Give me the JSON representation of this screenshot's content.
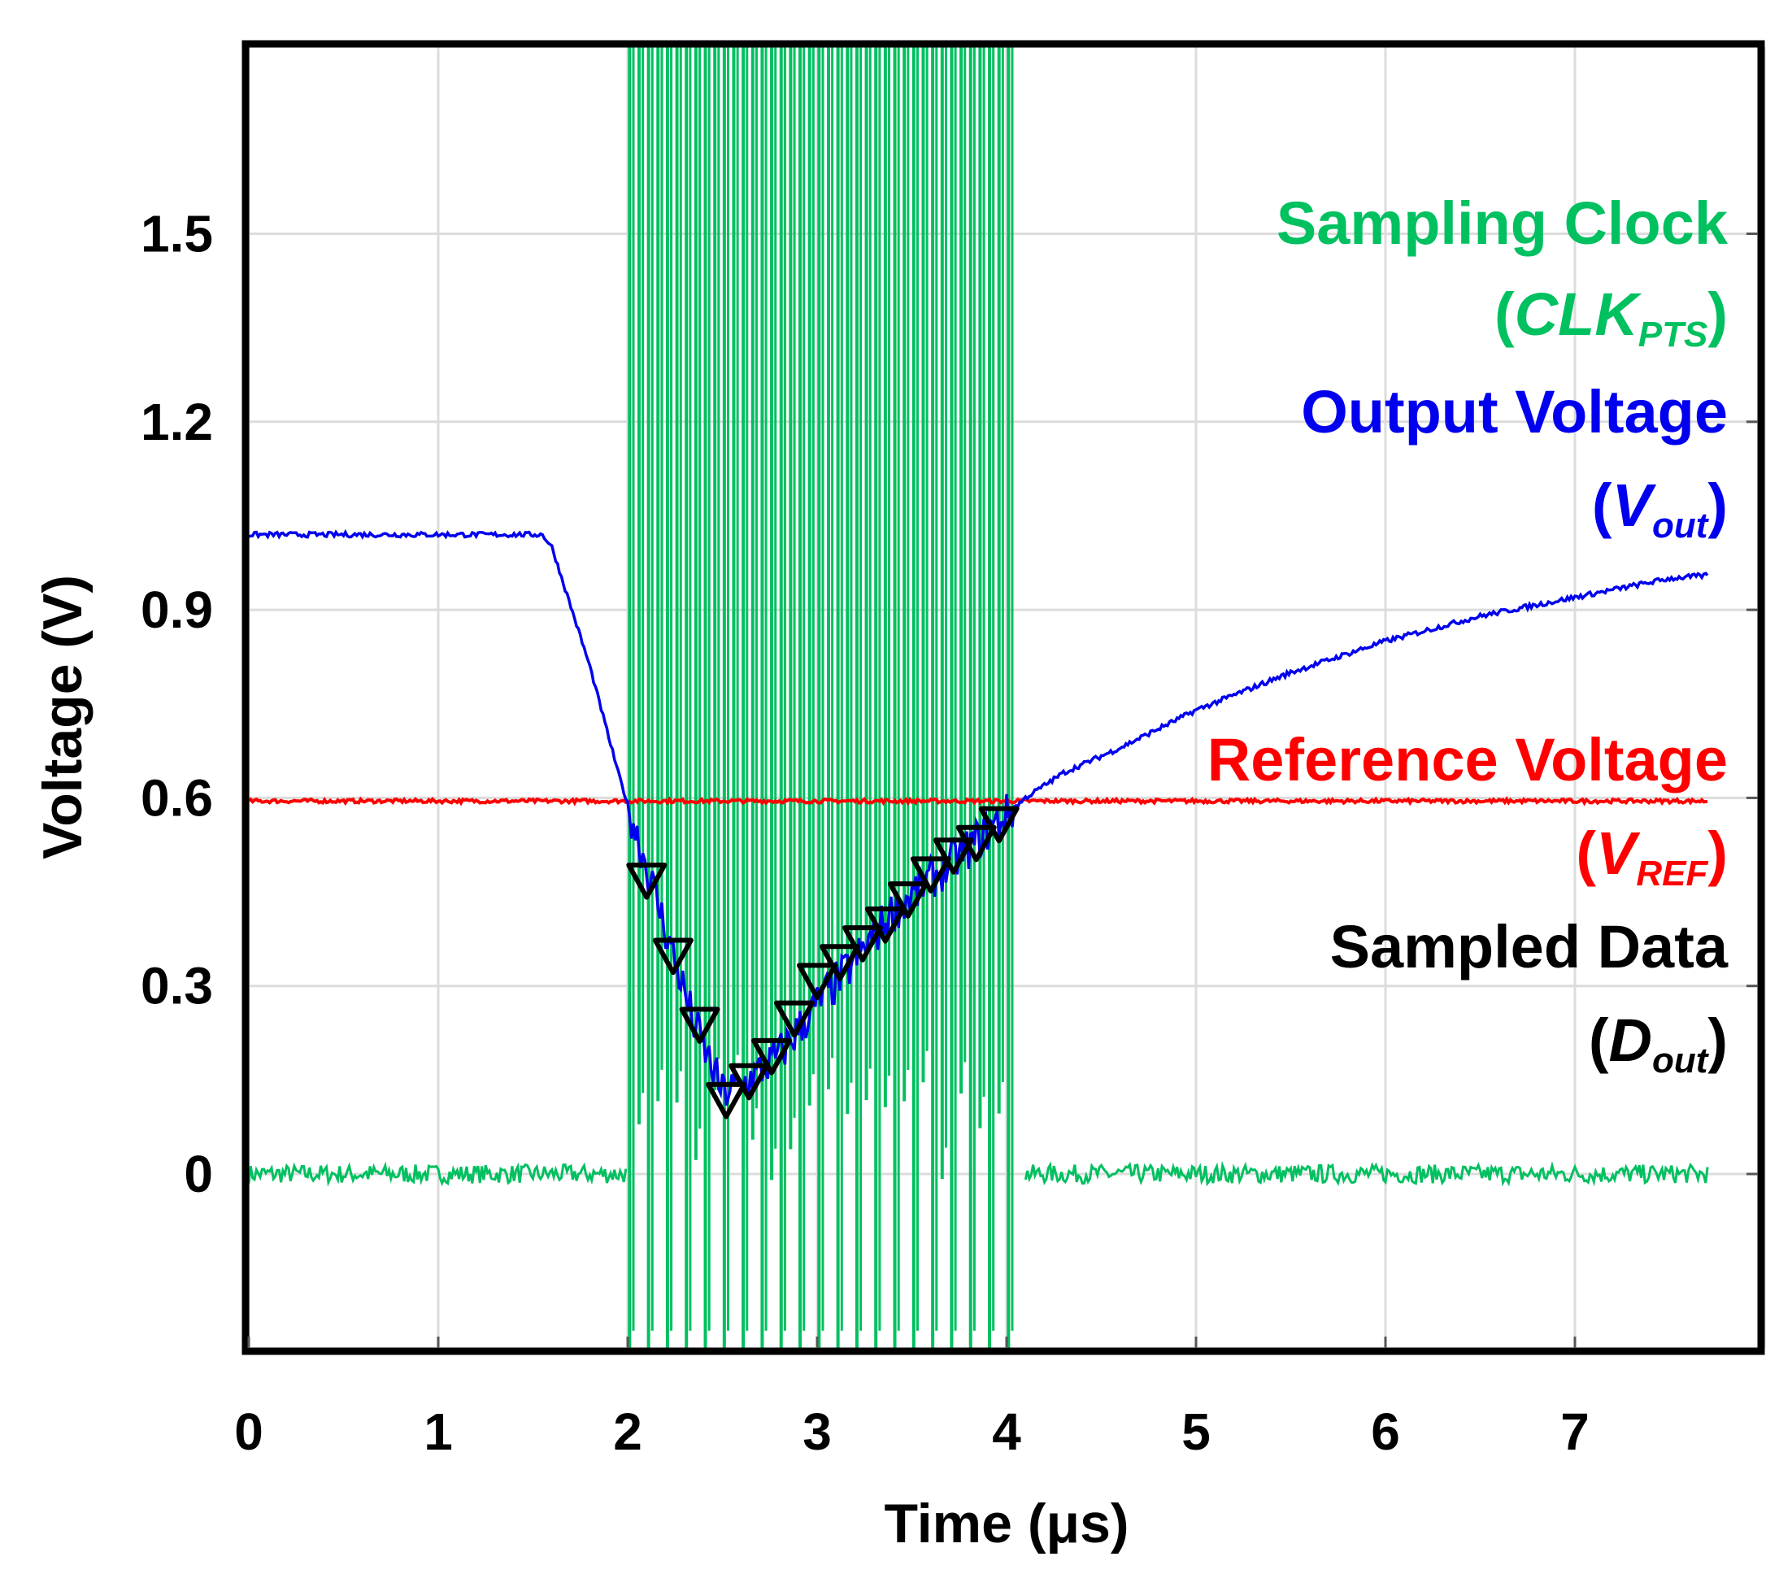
{
  "chart_data": {
    "type": "line",
    "title": "",
    "xlabel": "Time (μs)",
    "ylabel": "Voltage (V)",
    "xlim": [
      0,
      8
    ],
    "ylim": [
      -0.3,
      1.8
    ],
    "x_ticks": [
      0,
      1,
      2,
      3,
      4,
      5,
      6,
      7
    ],
    "x_tick_labels": [
      "0",
      "1",
      "2",
      "3",
      "4",
      "5",
      "6",
      "7"
    ],
    "y_ticks": [
      0,
      0.3,
      0.6,
      0.9,
      1.2,
      1.5
    ],
    "y_tick_labels": [
      "0",
      "0.3",
      "0.6",
      "0.9",
      "1.2",
      "1.5"
    ],
    "grid": true,
    "legend": [
      {
        "name": "Sampling Clock",
        "symbol_main": "CLK",
        "symbol_sub": "PTS",
        "color": "#00c060"
      },
      {
        "name": "Output Voltage",
        "symbol_main": "V",
        "symbol_sub": "out",
        "color": "#0000ee"
      },
      {
        "name": "Reference Voltage",
        "symbol_main": "V",
        "symbol_sub": "REF",
        "color": "#ff0000"
      },
      {
        "name": "Sampled Data",
        "symbol_main": "D",
        "symbol_sub": "out",
        "color": "#000000"
      }
    ],
    "legend_position": "right",
    "series": [
      {
        "name": "Sampling Clock (CLKPTS)",
        "color": "#00c060",
        "baseline": 0,
        "burst_start": 2.0,
        "burst_end": 4.05,
        "pulse_period": 0.05,
        "pulse_high": 1.8,
        "pulse_low": -0.3
      },
      {
        "name": "Output Voltage (Vout)",
        "color": "#0000ee",
        "x": [
          0,
          0.5,
          1.0,
          1.55,
          1.6,
          1.8,
          1.95,
          2.05,
          2.15,
          2.25,
          2.35,
          2.5,
          2.6,
          2.8,
          3.0,
          3.2,
          3.4,
          3.6,
          3.8,
          3.95,
          4.1,
          4.3,
          4.6,
          5.0,
          5.5,
          6.0,
          6.5,
          7.0,
          7.5,
          7.7
        ],
        "y": [
          1.02,
          1.02,
          1.02,
          1.02,
          1.0,
          0.81,
          0.64,
          0.54,
          0.44,
          0.34,
          0.24,
          0.13,
          0.14,
          0.19,
          0.27,
          0.34,
          0.42,
          0.47,
          0.52,
          0.56,
          0.6,
          0.64,
          0.68,
          0.74,
          0.8,
          0.85,
          0.89,
          0.92,
          0.95,
          0.955
        ]
      },
      {
        "name": "Reference Voltage (VREF)",
        "color": "#ff0000",
        "x": [
          0,
          7.7
        ],
        "y": [
          0.595,
          0.595
        ]
      },
      {
        "name": "Sampled Data (Dout)",
        "color": "#000000",
        "marker": "triangle-down",
        "x": [
          2.1,
          2.24,
          2.38,
          2.52,
          2.64,
          2.76,
          2.88,
          3.0,
          3.12,
          3.24,
          3.36,
          3.48,
          3.6,
          3.72,
          3.84,
          3.96
        ],
        "y": [
          0.47,
          0.35,
          0.24,
          0.12,
          0.15,
          0.19,
          0.25,
          0.31,
          0.34,
          0.37,
          0.4,
          0.44,
          0.48,
          0.51,
          0.53,
          0.56
        ]
      }
    ]
  }
}
